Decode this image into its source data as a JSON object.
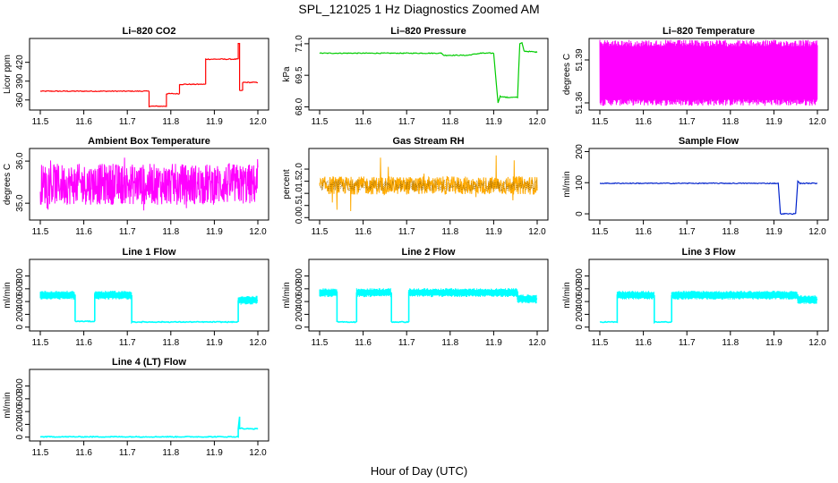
{
  "figure": {
    "title": "SPL_121025  1 Hz Diagnostics Zoomed AM",
    "xlabel": "Hour of Day (UTC)"
  },
  "chart_data": [
    {
      "type": "line",
      "title": "Li–820 CO2",
      "ylabel": "Licor ppm",
      "color": "#ff0000",
      "xlim": [
        11.5,
        12.0
      ],
      "ylim": [
        344,
        458
      ],
      "x_ticks": [
        "11.5",
        "11.6",
        "11.7",
        "11.8",
        "11.9",
        "12.0"
      ],
      "y_ticks": [
        360,
        390,
        420
      ],
      "y_tick_labels": [
        "360",
        "390",
        "420"
      ],
      "series": [
        {
          "x": [
            11.5,
            11.75,
            11.75,
            11.79,
            11.79,
            11.82,
            11.82,
            11.88,
            11.88,
            11.955,
            11.955,
            11.958,
            11.958,
            11.965,
            11.965,
            12.0
          ],
          "values": [
            374,
            374,
            350,
            350,
            370,
            370,
            385,
            385,
            425,
            425,
            450,
            450,
            375,
            375,
            388,
            388
          ]
        }
      ]
    },
    {
      "type": "line",
      "title": "Li–820 Pressure",
      "ylabel": "kPa",
      "color": "#00cc00",
      "xlim": [
        11.5,
        12.0
      ],
      "ylim": [
        67.85,
        71.25
      ],
      "x_ticks": [
        "11.5",
        "11.6",
        "11.7",
        "11.8",
        "11.9",
        "12.0"
      ],
      "y_ticks": [
        68.0,
        69.5,
        71.0
      ],
      "y_tick_labels": [
        "68.0",
        "69.5",
        "71.0"
      ],
      "series": [
        {
          "x": [
            11.5,
            11.78,
            11.785,
            11.84,
            11.87,
            11.9,
            11.91,
            11.915,
            11.93,
            11.955,
            11.96,
            11.965,
            11.97,
            12.0
          ],
          "values": [
            70.55,
            70.55,
            70.45,
            70.45,
            70.55,
            70.55,
            68.2,
            68.5,
            68.45,
            68.45,
            71.0,
            71.05,
            70.65,
            70.6
          ]
        }
      ]
    },
    {
      "type": "line",
      "title": "Li–820 Temperature",
      "ylabel": "degrees C",
      "color": "#ff00ff",
      "xlim": [
        11.5,
        12.0
      ],
      "ylim": [
        51.355,
        51.405
      ],
      "x_ticks": [
        "11.5",
        "11.6",
        "11.7",
        "11.8",
        "11.9",
        "12.0"
      ],
      "y_ticks": [
        51.36,
        51.39
      ],
      "y_tick_labels": [
        "51.36",
        "51.39"
      ],
      "series": [
        {
          "x": [
            11.5,
            12.0
          ],
          "values_range": [
            51.358,
            51.404
          ]
        }
      ]
    },
    {
      "type": "line",
      "title": "Ambient Box Temperature",
      "ylabel": "degrees C",
      "color": "#ff00ff",
      "xlim": [
        11.5,
        12.0
      ],
      "ylim": [
        34.6,
        36.3
      ],
      "x_ticks": [
        "11.5",
        "11.6",
        "11.7",
        "11.8",
        "11.9",
        "12.0"
      ],
      "y_ticks": [
        35.0,
        36.0
      ],
      "y_tick_labels": [
        "35.0",
        "36.0"
      ],
      "series": [
        {
          "x": [
            11.5,
            12.0
          ],
          "values_range": [
            34.8,
            36.1
          ]
        }
      ]
    },
    {
      "type": "line",
      "title": "Gas Stream RH",
      "ylabel": "percent",
      "color": "#ffaa00",
      "xlim": [
        11.5,
        12.0
      ],
      "ylim": [
        -0.1,
        2.85
      ],
      "x_ticks": [
        "11.5",
        "11.6",
        "11.7",
        "11.8",
        "11.9",
        "12.0"
      ],
      "y_ticks": [
        0.0,
        0.5,
        1.0,
        1.5,
        2.0
      ],
      "y_tick_labels": [
        "0.0",
        "0.5",
        "1.0",
        "1.5",
        "2.0"
      ],
      "series": [
        {
          "x": [
            11.5,
            12.0
          ],
          "values_range": [
            0.0,
            2.7
          ]
        }
      ]
    },
    {
      "type": "line",
      "title": "Sample Flow",
      "ylabel": "ml/min",
      "color": "#0022cc",
      "xlim": [
        11.5,
        12.0
      ],
      "ylim": [
        -20,
        210
      ],
      "x_ticks": [
        "11.5",
        "11.6",
        "11.7",
        "11.8",
        "11.9",
        "12.0"
      ],
      "y_ticks": [
        0,
        100,
        200
      ],
      "y_tick_labels": [
        "0",
        "100",
        "200"
      ],
      "series": [
        {
          "x": [
            11.5,
            11.91,
            11.915,
            11.95,
            11.955,
            11.96,
            12.0
          ],
          "values": [
            98,
            98,
            0,
            0,
            105,
            98,
            98
          ]
        }
      ]
    },
    {
      "type": "line",
      "title": "Line 1 Flow",
      "ylabel": "ml/min",
      "color": "#00ffff",
      "xlim": [
        11.5,
        12.0
      ],
      "ylim": [
        -60,
        1060
      ],
      "x_ticks": [
        "11.5",
        "11.6",
        "11.7",
        "11.8",
        "11.9",
        "12.0"
      ],
      "y_ticks": [
        0,
        200,
        400,
        600,
        800
      ],
      "y_tick_labels": [
        "0",
        "200",
        "400",
        "600",
        "800"
      ],
      "series": [
        {
          "x": [
            11.5,
            11.58,
            11.58,
            11.625,
            11.625,
            11.71,
            11.71,
            11.955,
            11.955,
            12.0
          ],
          "values": [
            500,
            500,
            90,
            90,
            500,
            500,
            80,
            80,
            420,
            420
          ]
        }
      ]
    },
    {
      "type": "line",
      "title": "Line 2 Flow",
      "ylabel": "ml/min",
      "color": "#00ffff",
      "xlim": [
        11.5,
        12.0
      ],
      "ylim": [
        -60,
        1060
      ],
      "x_ticks": [
        "11.5",
        "11.6",
        "11.7",
        "11.8",
        "11.9",
        "12.0"
      ],
      "y_ticks": [
        0,
        200,
        400,
        600,
        800
      ],
      "y_tick_labels": [
        "0",
        "200",
        "400",
        "600",
        "800"
      ],
      "series": [
        {
          "x": [
            11.5,
            11.54,
            11.54,
            11.585,
            11.585,
            11.665,
            11.665,
            11.705,
            11.705,
            11.955,
            11.955,
            12.0
          ],
          "values": [
            540,
            540,
            80,
            80,
            540,
            540,
            80,
            80,
            540,
            540,
            440,
            440
          ]
        }
      ]
    },
    {
      "type": "line",
      "title": "Line 3 Flow",
      "ylabel": "ml/min",
      "color": "#00ffff",
      "xlim": [
        11.5,
        12.0
      ],
      "ylim": [
        -60,
        1060
      ],
      "x_ticks": [
        "11.5",
        "11.6",
        "11.7",
        "11.8",
        "11.9",
        "12.0"
      ],
      "y_ticks": [
        0,
        200,
        400,
        600,
        800
      ],
      "y_tick_labels": [
        "0",
        "200",
        "400",
        "600",
        "800"
      ],
      "series": [
        {
          "x": [
            11.5,
            11.54,
            11.54,
            11.625,
            11.625,
            11.665,
            11.665,
            11.955,
            11.955,
            12.0
          ],
          "values": [
            80,
            80,
            500,
            500,
            80,
            80,
            500,
            500,
            430,
            430
          ]
        }
      ]
    },
    {
      "type": "line",
      "title": "Line 4 (LT) Flow",
      "ylabel": "ml/min",
      "color": "#00ffff",
      "xlim": [
        11.5,
        12.0
      ],
      "ylim": [
        -60,
        1060
      ],
      "x_ticks": [
        "11.5",
        "11.6",
        "11.7",
        "11.8",
        "11.9",
        "12.0"
      ],
      "y_ticks": [
        0,
        200,
        400,
        600,
        800
      ],
      "y_tick_labels": [
        "0",
        "200",
        "400",
        "600",
        "800"
      ],
      "series": [
        {
          "x": [
            11.5,
            11.955,
            11.955,
            11.958,
            11.958,
            11.965,
            11.965,
            12.0
          ],
          "values": [
            5,
            5,
            130,
            320,
            140,
            140,
            130,
            130
          ]
        }
      ]
    }
  ]
}
